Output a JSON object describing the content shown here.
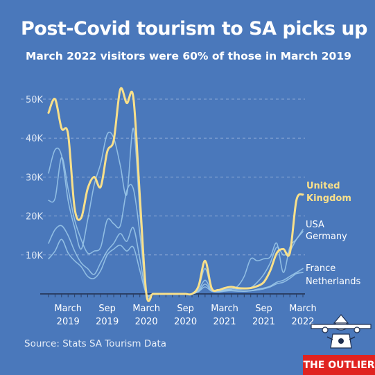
{
  "header": {
    "title": "Post-Covid tourism to SA picks up",
    "subtitle": "March 2022 visitors were 60% of those in March 2019"
  },
  "footer": {
    "source": "Source: Stats SA Tourism Data",
    "brand": "THE OUTLIER"
  },
  "colors": {
    "background": "#4a78bb",
    "highlight": "#f9e08a",
    "series": "#9cc9ea",
    "axis": "#2b3f66"
  },
  "icons": [
    "airplane-illustration"
  ],
  "chart_data": {
    "type": "line",
    "x": [
      "2018-12",
      "2019-01",
      "2019-02",
      "2019-03",
      "2019-04",
      "2019-05",
      "2019-06",
      "2019-07",
      "2019-08",
      "2019-09",
      "2019-10",
      "2019-11",
      "2019-12",
      "2020-01",
      "2020-02",
      "2020-03",
      "2020-04",
      "2020-05",
      "2020-06",
      "2020-07",
      "2020-08",
      "2020-09",
      "2020-10",
      "2020-11",
      "2020-12",
      "2021-01",
      "2021-02",
      "2021-03",
      "2021-04",
      "2021-05",
      "2021-06",
      "2021-07",
      "2021-08",
      "2021-09",
      "2021-10",
      "2021-11",
      "2021-12",
      "2022-01",
      "2022-02",
      "2022-03"
    ],
    "ylim": [
      0,
      52000
    ],
    "yticks": [
      10000,
      20000,
      30000,
      40000,
      50000
    ],
    "ytick_labels": [
      "10K",
      "20K",
      "30K",
      "40K",
      "50K"
    ],
    "xtick_labels": [
      {
        "x": "2019-03",
        "line1": "March",
        "line2": "2019"
      },
      {
        "x": "2019-09",
        "line1": "Sep",
        "line2": "2019"
      },
      {
        "x": "2020-03",
        "line1": "March",
        "line2": "2020"
      },
      {
        "x": "2020-09",
        "line1": "Sep",
        "line2": "2020"
      },
      {
        "x": "2021-03",
        "line1": "March",
        "line2": "2021"
      },
      {
        "x": "2021-09",
        "line1": "Sep",
        "line2": "2021"
      },
      {
        "x": "2022-03",
        "line1": "March",
        "line2": "2022"
      }
    ],
    "grid": true,
    "series": [
      {
        "name": "United Kingdom",
        "highlight": true,
        "values": [
          46500,
          50000,
          42500,
          41000,
          22000,
          19500,
          27000,
          30000,
          27500,
          36500,
          39500,
          52500,
          49000,
          50500,
          25000,
          0,
          0,
          0,
          0,
          0,
          0,
          0,
          0,
          2000,
          8500,
          1500,
          1000,
          1500,
          1800,
          1500,
          1400,
          1500,
          2000,
          3000,
          6000,
          10500,
          11500,
          10500,
          24000,
          25500
        ]
      },
      {
        "name": "USA",
        "values": [
          24000,
          24500,
          35000,
          27000,
          19000,
          14000,
          10500,
          11000,
          12000,
          19000,
          18000,
          17500,
          26500,
          27000,
          15500,
          0,
          0,
          0,
          0,
          0,
          0,
          0,
          0,
          1000,
          3500,
          1000,
          800,
          1000,
          1200,
          2000,
          4500,
          9000,
          8500,
          9000,
          9500,
          13000,
          5500,
          12000,
          14000,
          16500
        ]
      },
      {
        "name": "Germany",
        "values": [
          31000,
          37000,
          35500,
          24000,
          17000,
          11500,
          19000,
          28000,
          33500,
          41000,
          40000,
          33000,
          25500,
          42500,
          21000,
          0,
          0,
          0,
          0,
          0,
          0,
          0,
          0,
          1500,
          6500,
          1200,
          900,
          1100,
          1300,
          1200,
          1300,
          1600,
          3000,
          5000,
          8000,
          12000,
          10000,
          11000,
          14000,
          16000
        ]
      },
      {
        "name": "France",
        "values": [
          13000,
          16500,
          17500,
          15000,
          11000,
          8000,
          6500,
          5000,
          8000,
          11000,
          13000,
          15500,
          13500,
          17000,
          9000,
          0,
          0,
          0,
          0,
          0,
          0,
          0,
          0,
          700,
          2500,
          800,
          600,
          800,
          900,
          800,
          700,
          800,
          1200,
          1500,
          2000,
          3000,
          3500,
          4500,
          5500,
          6500
        ]
      },
      {
        "name": "Netherlands",
        "values": [
          9000,
          11000,
          14000,
          10500,
          8500,
          7000,
          4500,
          4000,
          6000,
          10000,
          11500,
          12500,
          11000,
          12000,
          6000,
          0,
          0,
          0,
          0,
          0,
          0,
          0,
          0,
          600,
          1800,
          700,
          500,
          700,
          800,
          700,
          700,
          800,
          1000,
          1300,
          1800,
          2600,
          3000,
          4000,
          5200,
          5500
        ]
      }
    ],
    "labels": [
      {
        "series": "United Kingdom",
        "lines": [
          "United",
          "Kingdom"
        ]
      },
      {
        "series": "USA",
        "lines": [
          "USA"
        ]
      },
      {
        "series": "Germany",
        "lines": [
          "Germany"
        ]
      },
      {
        "series": "France",
        "lines": [
          "France"
        ]
      },
      {
        "series": "Netherlands",
        "lines": [
          "Netherlands"
        ]
      }
    ]
  }
}
